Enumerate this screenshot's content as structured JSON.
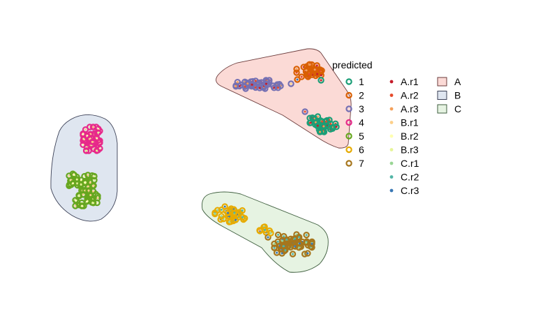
{
  "chart_data": {
    "type": "scatter",
    "title": "",
    "xlabel": "",
    "ylabel": "",
    "grid": false,
    "axes_visible": false,
    "legend_placement": "right",
    "legend_title": "predicted",
    "clusters": [
      {
        "name": "1",
        "color": "#1b9e77"
      },
      {
        "name": "2",
        "color": "#d95f02"
      },
      {
        "name": "3",
        "color": "#7570b3"
      },
      {
        "name": "4",
        "color": "#e7298a"
      },
      {
        "name": "5",
        "color": "#66a61e"
      },
      {
        "name": "6",
        "color": "#e6ab02"
      },
      {
        "name": "7",
        "color": "#a6761d"
      }
    ],
    "replicates": [
      {
        "name": "A.r1",
        "color": "#c51b2a"
      },
      {
        "name": "A.r2",
        "color": "#e64a2a"
      },
      {
        "name": "A.r3",
        "color": "#f4a05a"
      },
      {
        "name": "B.r1",
        "color": "#fdd08a"
      },
      {
        "name": "B.r2",
        "color": "#ffffb0"
      },
      {
        "name": "B.r3",
        "color": "#e6f598"
      },
      {
        "name": "C.r1",
        "color": "#99d594"
      },
      {
        "name": "C.r2",
        "color": "#52b5a6"
      },
      {
        "name": "C.r3",
        "color": "#3a78b5"
      }
    ],
    "groups": [
      {
        "name": "A",
        "fill": "#fbdad6",
        "stroke": "#6b3b3b"
      },
      {
        "name": "B",
        "fill": "#dfe6f0",
        "stroke": "#3a3f55"
      },
      {
        "name": "C",
        "fill": "#e6f3e2",
        "stroke": "#3e5e3e"
      }
    ],
    "point_groups": [
      {
        "cluster": "4",
        "group": "B",
        "center": [
          131,
          199
        ],
        "spread": [
          12,
          17
        ],
        "n": 55
      },
      {
        "cluster": "5",
        "group": "B",
        "center": [
          117,
          258
        ],
        "spread": [
          18,
          10
        ],
        "n": 40
      },
      {
        "cluster": "5",
        "group": "B",
        "center": [
          124,
          284
        ],
        "spread": [
          16,
          11
        ],
        "n": 40
      },
      {
        "cluster": "3",
        "group": "A",
        "center": [
          370,
          121
        ],
        "spread": [
          32,
          6
        ],
        "n": 50
      },
      {
        "cluster": "2",
        "group": "A",
        "center": [
          443,
          102
        ],
        "spread": [
          18,
          10
        ],
        "n": 40
      },
      {
        "cluster": "1",
        "group": "A",
        "center": [
          463,
          178
        ],
        "spread": [
          19,
          11
        ],
        "n": 45
      },
      {
        "cluster": "6",
        "group": "C",
        "center": [
          330,
          307
        ],
        "spread": [
          22,
          11
        ],
        "n": 40
      },
      {
        "cluster": "6",
        "group": "C",
        "center": [
          380,
          330
        ],
        "spread": [
          8,
          5
        ],
        "n": 6
      },
      {
        "cluster": "7",
        "group": "C",
        "center": [
          420,
          350
        ],
        "spread": [
          27,
          14
        ],
        "n": 65
      }
    ]
  }
}
